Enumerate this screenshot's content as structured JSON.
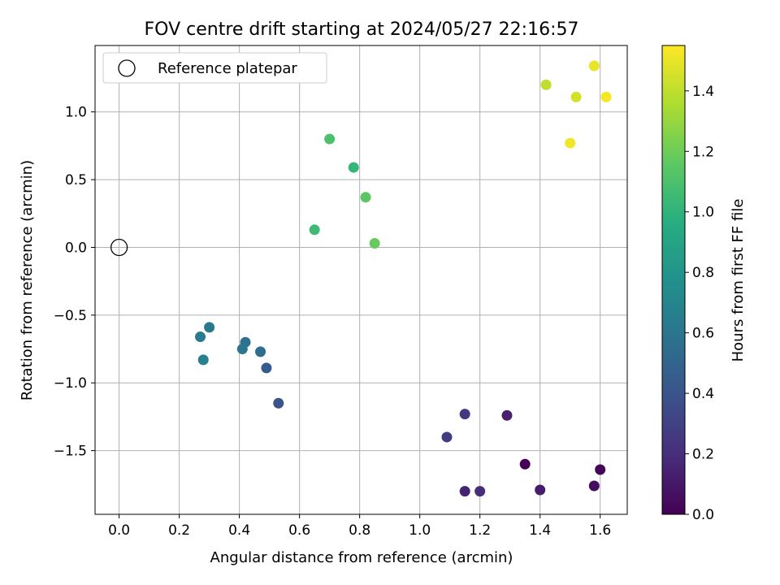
{
  "chart_data": {
    "type": "scatter",
    "title": "FOV centre drift starting at 2024/05/27 22:16:57",
    "xlabel": "Angular distance from reference (arcmin)",
    "ylabel": "Rotation from reference (arcmin)",
    "xlim": [
      -0.08,
      1.69
    ],
    "ylim": [
      -1.97,
      1.49
    ],
    "xticks": [
      "0.0",
      "0.2",
      "0.4",
      "0.6",
      "0.8",
      "1.0",
      "1.2",
      "1.4",
      "1.6"
    ],
    "xtick_values": [
      0.0,
      0.2,
      0.4,
      0.6,
      0.8,
      1.0,
      1.2,
      1.4,
      1.6
    ],
    "yticks": [
      "−1.5",
      "−1.0",
      "−0.5",
      "0.0",
      "0.5",
      "1.0"
    ],
    "ytick_values": [
      -1.5,
      -1.0,
      -0.5,
      0.0,
      0.5,
      1.0
    ],
    "grid": true,
    "legend": {
      "position": "top-left",
      "entries": [
        "Reference platepar"
      ]
    },
    "reference_point": {
      "x": 0.0,
      "y": 0.0
    },
    "colorbar": {
      "label": "Hours from first FF file",
      "colormap": "viridis",
      "range": [
        0.0,
        1.55
      ],
      "ticks": [
        "0.0",
        "0.2",
        "0.4",
        "0.6",
        "0.8",
        "1.0",
        "1.2",
        "1.4"
      ],
      "tick_values": [
        0.0,
        0.2,
        0.4,
        0.6,
        0.8,
        1.0,
        1.2,
        1.4
      ]
    },
    "points": [
      {
        "x": 1.35,
        "y": -1.6,
        "hours": 0.0
      },
      {
        "x": 1.6,
        "y": -1.64,
        "hours": 0.02
      },
      {
        "x": 1.58,
        "y": -1.76,
        "hours": 0.05
      },
      {
        "x": 1.4,
        "y": -1.79,
        "hours": 0.12
      },
      {
        "x": 1.29,
        "y": -1.24,
        "hours": 0.13
      },
      {
        "x": 1.15,
        "y": -1.8,
        "hours": 0.15
      },
      {
        "x": 1.2,
        "y": -1.8,
        "hours": 0.2
      },
      {
        "x": 1.15,
        "y": -1.23,
        "hours": 0.25
      },
      {
        "x": 1.09,
        "y": -1.4,
        "hours": 0.28
      },
      {
        "x": 0.53,
        "y": -1.15,
        "hours": 0.4
      },
      {
        "x": 0.49,
        "y": -0.89,
        "hours": 0.45
      },
      {
        "x": 0.47,
        "y": -0.77,
        "hours": 0.55
      },
      {
        "x": 0.42,
        "y": -0.7,
        "hours": 0.58
      },
      {
        "x": 0.41,
        "y": -0.75,
        "hours": 0.6
      },
      {
        "x": 0.3,
        "y": -0.59,
        "hours": 0.62
      },
      {
        "x": 0.27,
        "y": -0.66,
        "hours": 0.64
      },
      {
        "x": 0.28,
        "y": -0.83,
        "hours": 0.66
      },
      {
        "x": 0.65,
        "y": 0.13,
        "hours": 1.05
      },
      {
        "x": 0.78,
        "y": 0.59,
        "hours": 1.02
      },
      {
        "x": 0.7,
        "y": 0.8,
        "hours": 1.1
      },
      {
        "x": 0.82,
        "y": 0.37,
        "hours": 1.15
      },
      {
        "x": 0.85,
        "y": 0.03,
        "hours": 1.18
      },
      {
        "x": 1.42,
        "y": 1.2,
        "hours": 1.4
      },
      {
        "x": 1.52,
        "y": 1.11,
        "hours": 1.45
      },
      {
        "x": 1.58,
        "y": 1.34,
        "hours": 1.5
      },
      {
        "x": 1.5,
        "y": 0.77,
        "hours": 1.52
      },
      {
        "x": 1.62,
        "y": 1.11,
        "hours": 1.53
      }
    ]
  }
}
